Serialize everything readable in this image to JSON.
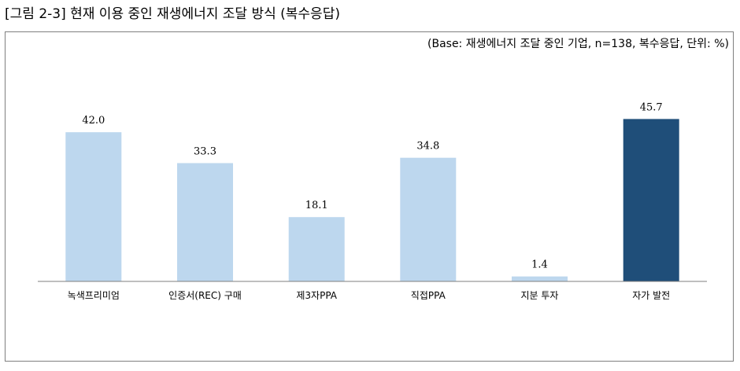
{
  "figure": {
    "title": "[그림 2-3] 현재 이용 중인 재생에너지 조달 방식 (복수응답)",
    "note": "(Base: 재생에너지 조달 중인 기업, n=138, 복수응답, 단위: %)"
  },
  "chart_data": {
    "type": "bar",
    "categories": [
      "녹색프리미엄",
      "인증서(REC) 구매",
      "제3자PPA",
      "직접PPA",
      "지분 투자",
      "자가 발전"
    ],
    "values": [
      42.0,
      33.3,
      18.1,
      34.8,
      1.4,
      45.7
    ],
    "value_labels": [
      "42.0",
      "33.3",
      "18.1",
      "34.8",
      "1.4",
      "45.7"
    ],
    "ylim": [
      0,
      50
    ],
    "grid": false,
    "legend": "none",
    "colors": {
      "default_bar": "#bdd7ee",
      "highlight_bar": "#1f4e79",
      "axis": "#7f7f7f"
    },
    "highlight_category": "자가 발전"
  }
}
